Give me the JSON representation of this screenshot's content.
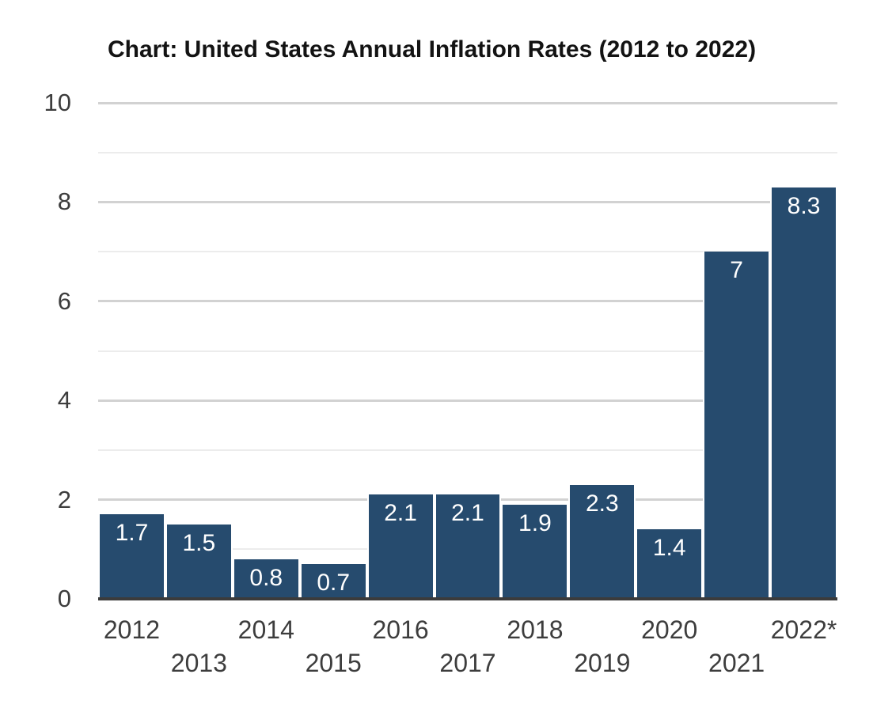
{
  "chart_data": {
    "type": "bar",
    "title": "Chart: United States Annual Inflation Rates (2012 to 2022)",
    "categories": [
      "2012",
      "2013",
      "2014",
      "2015",
      "2016",
      "2017",
      "2018",
      "2019",
      "2020",
      "2021",
      "2022*"
    ],
    "values": [
      1.7,
      1.5,
      0.8,
      0.7,
      2.1,
      2.1,
      1.9,
      2.3,
      1.4,
      7,
      8.3
    ],
    "bar_labels": [
      "1.7",
      "1.5",
      "0.8",
      "0.7",
      "2.1",
      "2.1",
      "1.9",
      "2.3",
      "1.4",
      "7",
      "8.3"
    ],
    "xlabel": "",
    "ylabel": "",
    "ylim": [
      0,
      10
    ],
    "y_ticks": [
      0,
      2,
      4,
      6,
      8,
      10
    ],
    "y_tick_labels": [
      "0",
      "2",
      "4",
      "6",
      "8",
      "10"
    ],
    "grid": "horizontal lines every 1 unit; darker major lines at even values, lighter minor lines at odd values",
    "legend": "none",
    "x_label_layout": "staggered two rows; even years on upper row, odd years on lower row",
    "bar_value_label_position": "inside bar, top-centered, white text",
    "colors": {
      "bar": "#264b6e",
      "bar_label_text": "#ffffff",
      "axis_line": "#3b3b3b",
      "major_gridline": "#d2d2d2",
      "minor_gridline": "#ececec",
      "tick_text": "#3d3d3d",
      "title_text": "#131313",
      "background": "#ffffff"
    }
  }
}
